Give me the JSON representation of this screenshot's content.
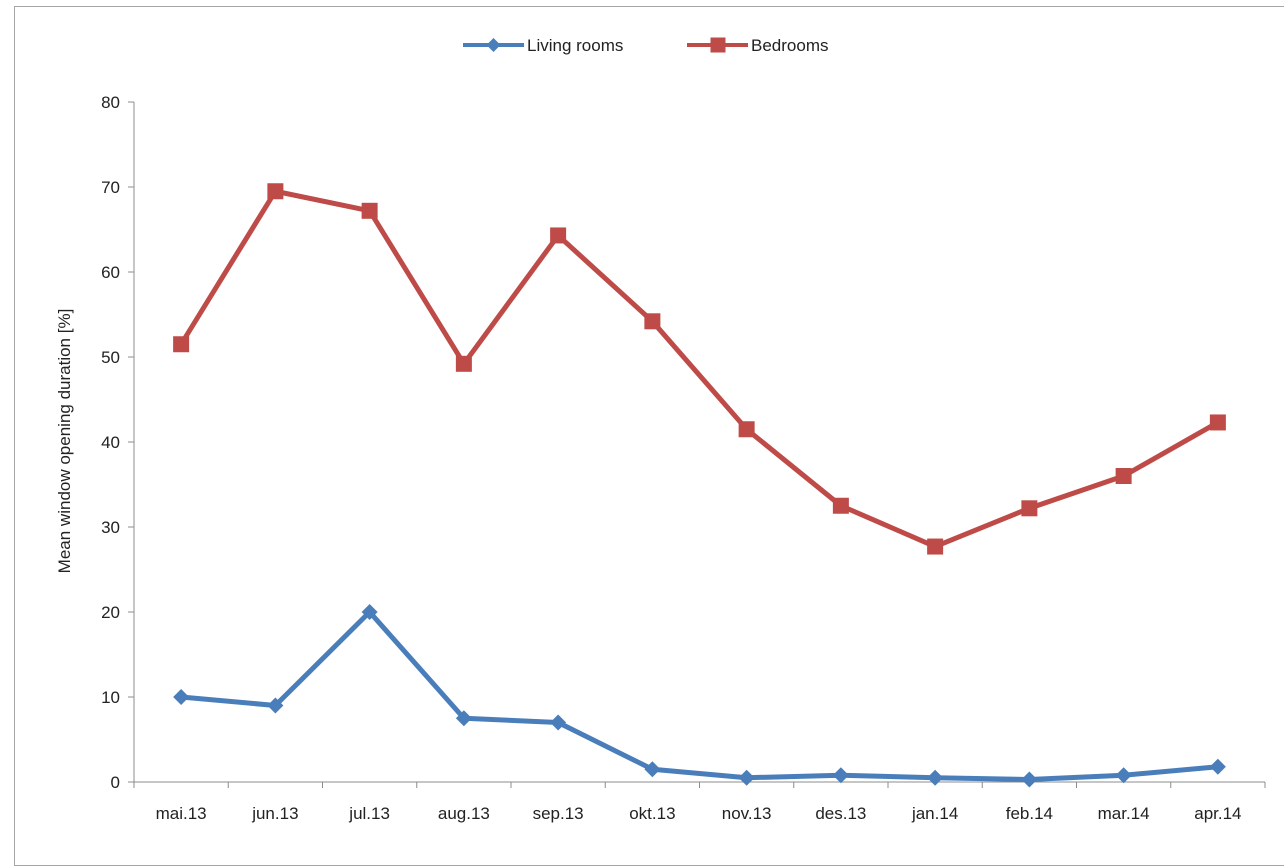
{
  "chart_data": {
    "type": "line",
    "title": "",
    "xlabel": "",
    "ylabel": "Mean window opening duration [%]",
    "ylim": [
      0,
      80
    ],
    "yticks": [
      0,
      10,
      20,
      30,
      40,
      50,
      60,
      70,
      80
    ],
    "grid": false,
    "legend_position": "top-center",
    "categories": [
      "mai.13",
      "jun.13",
      "jul.13",
      "aug.13",
      "sep.13",
      "okt.13",
      "nov.13",
      "des.13",
      "jan.14",
      "feb.14",
      "mar.14",
      "apr.14"
    ],
    "series": [
      {
        "name": "Living rooms",
        "color": "#4a7ebb",
        "marker": "diamond",
        "values": [
          10,
          9,
          20,
          7.5,
          7,
          1.5,
          0.5,
          0.8,
          0.5,
          0.3,
          0.8,
          1.8
        ]
      },
      {
        "name": "Bedrooms",
        "color": "#be4b48",
        "marker": "square",
        "values": [
          51.5,
          69.5,
          67.2,
          49.2,
          64.3,
          54.2,
          41.5,
          32.5,
          27.7,
          32.2,
          36,
          42.3
        ]
      }
    ]
  }
}
